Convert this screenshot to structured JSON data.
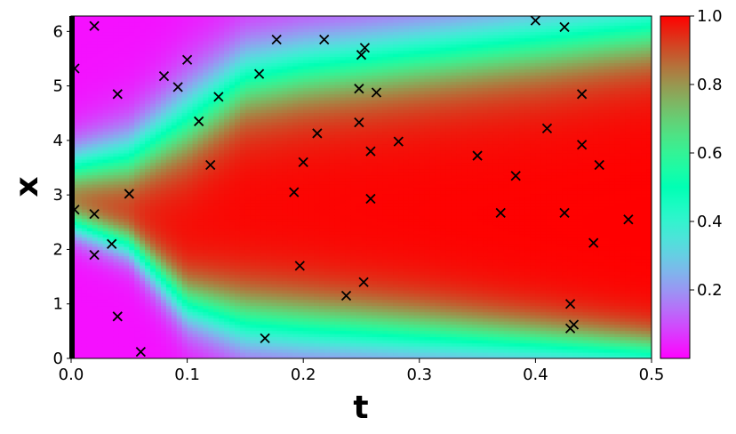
{
  "chart_data": [
    {
      "type": "heatmap",
      "title": "",
      "xlabel": "t",
      "ylabel": "x",
      "xlim": [
        0,
        0.5
      ],
      "ylim": [
        0,
        6.283
      ],
      "x_ticks": [
        {
          "value": 0.0,
          "label": "0.0"
        },
        {
          "value": 0.1,
          "label": "0.1"
        },
        {
          "value": 0.2,
          "label": "0.2"
        },
        {
          "value": 0.3,
          "label": "0.3"
        },
        {
          "value": 0.4,
          "label": "0.4"
        },
        {
          "value": 0.5,
          "label": "0.5"
        }
      ],
      "y_ticks": [
        {
          "value": 0,
          "label": "0"
        },
        {
          "value": 1,
          "label": "1"
        },
        {
          "value": 2,
          "label": "2"
        },
        {
          "value": 3,
          "label": "3"
        },
        {
          "value": 4,
          "label": "4"
        },
        {
          "value": 5,
          "label": "5"
        },
        {
          "value": 6,
          "label": "6"
        }
      ],
      "colormap": "rainbow",
      "color_range": [
        0,
        1
      ],
      "colorbar_ticks": [
        {
          "value": 0.2,
          "label": "0.2"
        },
        {
          "value": 0.4,
          "label": "0.4"
        },
        {
          "value": 0.6,
          "label": "0.6"
        },
        {
          "value": 0.8,
          "label": "0.8"
        },
        {
          "value": 1.0,
          "label": "1.0"
        }
      ],
      "field_profile": {
        "t": [
          0.0,
          0.05,
          0.1,
          0.15,
          0.2,
          0.3,
          0.4,
          0.5
        ],
        "upper_front_x": [
          3.5,
          3.7,
          4.4,
          5.15,
          5.35,
          5.6,
          5.85,
          6.1
        ],
        "lower_front_x": [
          2.5,
          2.1,
          1.0,
          0.65,
          0.55,
          0.4,
          0.25,
          0.1
        ],
        "upper_width": [
          0.28,
          0.35,
          0.45,
          0.45,
          0.45,
          0.45,
          0.45,
          0.42
        ],
        "lower_width": [
          0.18,
          0.2,
          0.3,
          0.38,
          0.38,
          0.35,
          0.3,
          0.25
        ],
        "background_value": 0.02
      },
      "boundary_band_at_t0": true,
      "points": {
        "marker": "x",
        "color": "#000000",
        "x": [
          0.003,
          0.02,
          0.04,
          0.08,
          0.092,
          0.1,
          0.11,
          0.12,
          0.127,
          0.162,
          0.177,
          0.218,
          0.25,
          0.253,
          0.248,
          0.263,
          0.248,
          0.212,
          0.258,
          0.282,
          0.2,
          0.192,
          0.258,
          0.05,
          0.003,
          0.02,
          0.035,
          0.02,
          0.04,
          0.06,
          0.167,
          0.197,
          0.252,
          0.237,
          0.35,
          0.383,
          0.37,
          0.4,
          0.425,
          0.44,
          0.41,
          0.44,
          0.455,
          0.425,
          0.48,
          0.45,
          0.43,
          0.433,
          0.43
        ],
        "y": [
          5.32,
          6.1,
          4.85,
          5.18,
          4.98,
          5.48,
          4.35,
          3.55,
          4.8,
          5.22,
          5.85,
          5.85,
          5.57,
          5.7,
          4.95,
          4.88,
          4.33,
          4.13,
          3.8,
          3.98,
          3.6,
          3.05,
          2.93,
          3.02,
          2.73,
          2.65,
          2.1,
          1.9,
          0.77,
          0.12,
          0.37,
          1.7,
          1.4,
          1.15,
          3.72,
          3.35,
          2.67,
          6.2,
          6.08,
          4.85,
          4.22,
          3.92,
          3.55,
          2.67,
          2.55,
          2.12,
          1.0,
          0.62,
          0.55
        ]
      }
    }
  ]
}
